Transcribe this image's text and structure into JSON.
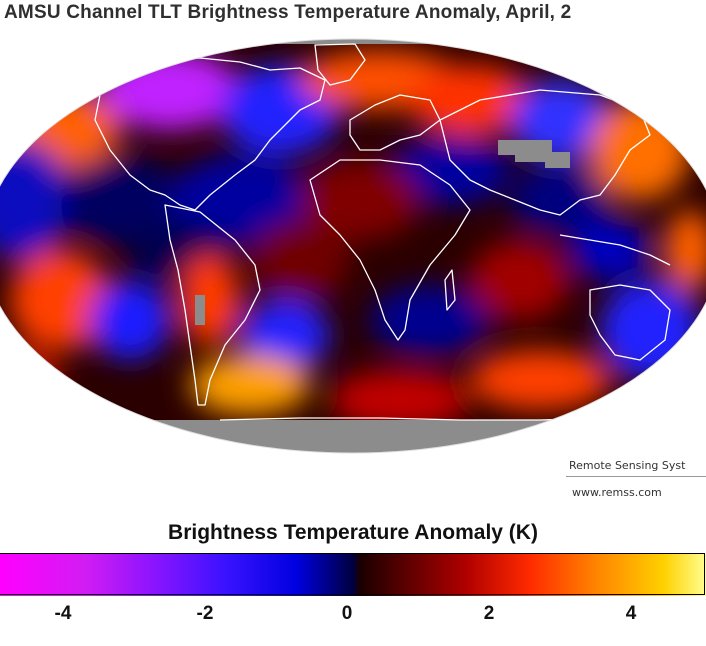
{
  "title": "AMSU Channel TLT Brightness Temperature Anomaly, April, 2",
  "credits": {
    "line1": "Remote Sensing Syst",
    "line2": "www.remss.com"
  },
  "colorbar": {
    "title": "Brightness Temperature Anomaly (K)",
    "ticks": [
      "-4",
      "-2",
      "0",
      "2",
      "4"
    ]
  },
  "colors": {
    "neg_strong": "#ff00ff",
    "neg": "#0000e0",
    "zero": "#000000",
    "pos": "#b00000",
    "pos_strong": "#ffff90",
    "no_data": "#8c8c8c",
    "coast": "#ffffff"
  }
}
